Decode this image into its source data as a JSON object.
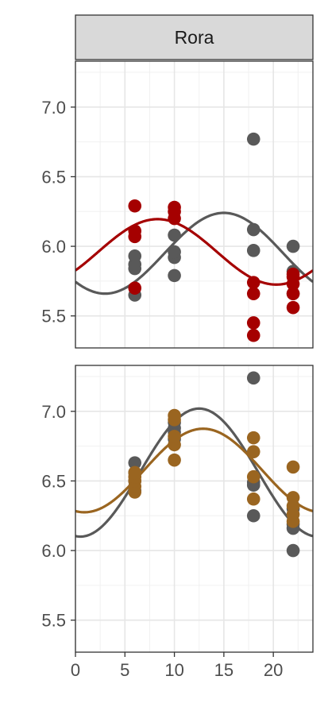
{
  "chart_data": {
    "type": "scatter",
    "facet_label": "Rora",
    "x_ticks": [
      "0",
      "5",
      "10",
      "15",
      "20"
    ],
    "y_ticks": [
      "5.5",
      "6.0",
      "6.5",
      "7.0"
    ],
    "xlim": [
      0,
      24
    ],
    "ylim": [
      5.27,
      7.33
    ],
    "grid": true,
    "colors": {
      "grey": "#595959",
      "red": "#a50000",
      "brown": "#9a6520"
    },
    "panels": [
      {
        "position": "top",
        "series": [
          {
            "color": "grey",
            "points": [
              [
                6,
                5.65
              ],
              [
                6,
                5.84
              ],
              [
                6,
                5.87
              ],
              [
                6,
                5.93
              ],
              [
                10,
                5.79
              ],
              [
                10,
                5.92
              ],
              [
                10,
                5.96
              ],
              [
                10,
                6.08
              ],
              [
                18,
                5.97
              ],
              [
                18,
                6.12
              ],
              [
                18,
                6.77
              ],
              [
                22,
                5.66
              ],
              [
                22,
                5.82
              ],
              [
                22,
                6.0
              ]
            ],
            "fit": {
              "mean": 5.95,
              "amplitude": 0.29,
              "peak": 15
            }
          },
          {
            "color": "red",
            "points": [
              [
                6,
                5.7
              ],
              [
                6,
                6.07
              ],
              [
                6,
                6.11
              ],
              [
                6,
                6.29
              ],
              [
                10,
                6.2
              ],
              [
                10,
                6.25
              ],
              [
                10,
                6.28
              ],
              [
                18,
                5.36
              ],
              [
                18,
                5.45
              ],
              [
                18,
                5.66
              ],
              [
                18,
                5.74
              ],
              [
                22,
                5.56
              ],
              [
                22,
                5.66
              ],
              [
                22,
                5.73
              ],
              [
                22,
                5.78
              ],
              [
                22,
                5.8
              ]
            ],
            "fit": {
              "mean": 5.96,
              "amplitude": 0.235,
              "peak": 8.3
            }
          }
        ]
      },
      {
        "position": "bottom",
        "series": [
          {
            "color": "grey",
            "points": [
              [
                6,
                6.43
              ],
              [
                6,
                6.5
              ],
              [
                6,
                6.56
              ],
              [
                6,
                6.63
              ],
              [
                10,
                6.8
              ],
              [
                10,
                6.85
              ],
              [
                10,
                6.88
              ],
              [
                10,
                6.92
              ],
              [
                18,
                6.25
              ],
              [
                18,
                6.47
              ],
              [
                18,
                6.49
              ],
              [
                18,
                7.24
              ],
              [
                22,
                6.0
              ],
              [
                22,
                6.16
              ],
              [
                22,
                6.19
              ],
              [
                22,
                6.3
              ]
            ],
            "fit": {
              "mean": 6.56,
              "amplitude": 0.46,
              "peak": 12.5
            }
          },
          {
            "color": "brown",
            "points": [
              [
                6,
                6.42
              ],
              [
                6,
                6.46
              ],
              [
                6,
                6.5
              ],
              [
                6,
                6.53
              ],
              [
                6,
                6.56
              ],
              [
                10,
                6.65
              ],
              [
                10,
                6.76
              ],
              [
                10,
                6.82
              ],
              [
                10,
                6.94
              ],
              [
                10,
                6.97
              ],
              [
                18,
                6.37
              ],
              [
                18,
                6.53
              ],
              [
                18,
                6.71
              ],
              [
                18,
                6.81
              ],
              [
                22,
                6.21
              ],
              [
                22,
                6.26
              ],
              [
                22,
                6.32
              ],
              [
                22,
                6.38
              ],
              [
                22,
                6.6
              ]
            ],
            "fit": {
              "mean": 6.575,
              "amplitude": 0.3,
              "peak": 12.9
            }
          }
        ]
      }
    ]
  }
}
